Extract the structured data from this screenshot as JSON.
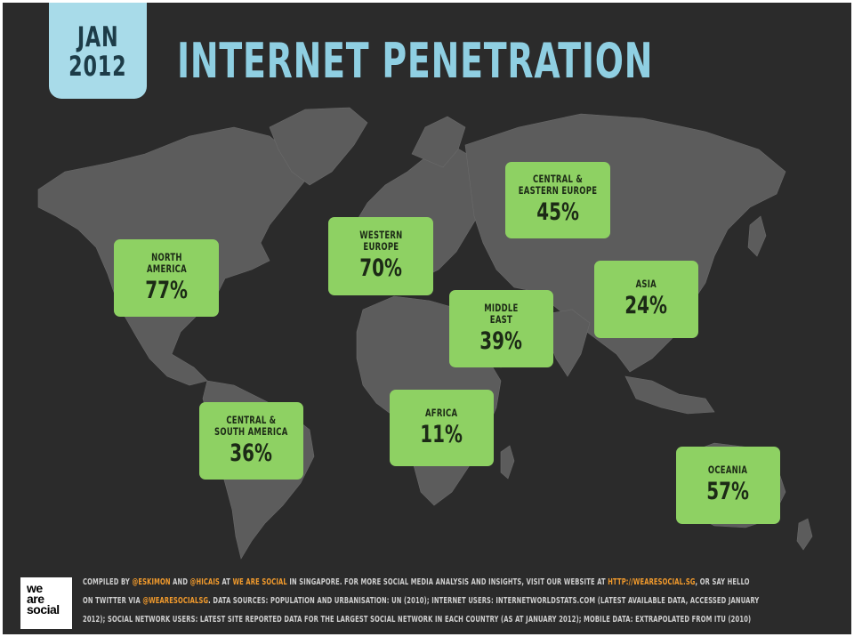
{
  "header": {
    "date_line1": "JAN",
    "date_line2": "2012",
    "title": "INTERNET PENETRATION"
  },
  "colors": {
    "background": "#2b2b2b",
    "land": "#5c5c5c",
    "region_box": "#8ed163",
    "title": "#8fcfe2",
    "date_badge": "#a8dbe9",
    "highlight": "#f19a2c"
  },
  "regions": [
    {
      "id": "north-america",
      "name": "NORTH\nAMERICA",
      "value": "77%"
    },
    {
      "id": "western-europe",
      "name": "WESTERN\nEUROPE",
      "value": "70%"
    },
    {
      "id": "central-eastern-europe",
      "name": "CENTRAL &\nEASTERN EUROPE",
      "value": "45%"
    },
    {
      "id": "asia",
      "name": "ASIA",
      "value": "24%"
    },
    {
      "id": "middle-east",
      "name": "MIDDLE\nEAST",
      "value": "39%"
    },
    {
      "id": "africa",
      "name": "AFRICA",
      "value": "11%"
    },
    {
      "id": "central-south-america",
      "name": "CENTRAL &\nSOUTH AMERICA",
      "value": "36%"
    },
    {
      "id": "oceania",
      "name": "OCEANIA",
      "value": "57%"
    }
  ],
  "footer": {
    "logo_lines": [
      "we",
      "are",
      "social"
    ],
    "line1_a": "COMPILED BY ",
    "handle1": "@ESKIMON",
    "line1_b": " AND ",
    "handle2": "@HICAIS",
    "line1_c": " AT ",
    "org": "WE ARE SOCIAL",
    "line1_d": " IN SINGAPORE. FOR MORE SOCIAL MEDIA ANALYSIS AND INSIGHTS, VISIT OUR WEBSITE AT ",
    "url": "HTTP://WEARESOCIAL.SG",
    "line1_e": ", OR SAY HELLO",
    "line2_a": "ON TWITTER VIA ",
    "handle3": "@WEARESOCIALSG",
    "line2_b": ". DATA SOURCES: POPULATION AND URBANISATION: UN (2010); INTERNET USERS: INTERNETWORLDSTATS.COM (LATEST AVAILABLE DATA, ACCESSED JANUARY",
    "line3": "2012); SOCIAL NETWORK USERS: LATEST SITE REPORTED DATA FOR THE LARGEST SOCIAL NETWORK IN EACH COUNTRY (AS AT JANUARY 2012); MOBILE DATA: EXTRAPOLATED FROM ITU (2010)"
  }
}
